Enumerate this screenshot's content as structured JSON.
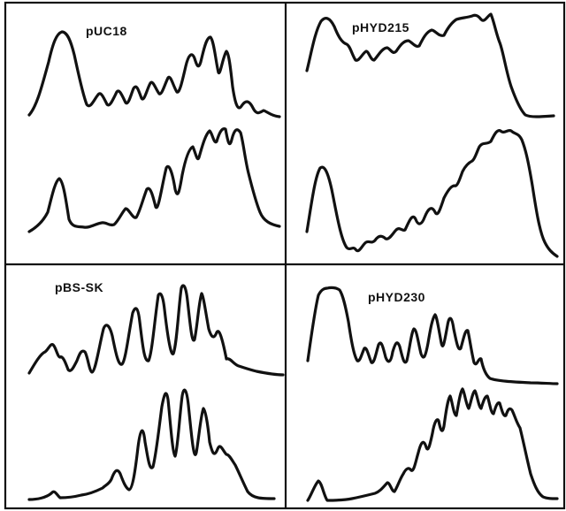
{
  "figure": {
    "panels": [
      {
        "id": "top-left",
        "label": "pUC18"
      },
      {
        "id": "top-right",
        "label": "pHYD215"
      },
      {
        "id": "bottom-left",
        "label": "pBS-SK"
      },
      {
        "id": "bottom-right",
        "label": "pHYD230"
      }
    ]
  },
  "colors": {
    "ink": "#111111",
    "background": "#ffffff"
  }
}
